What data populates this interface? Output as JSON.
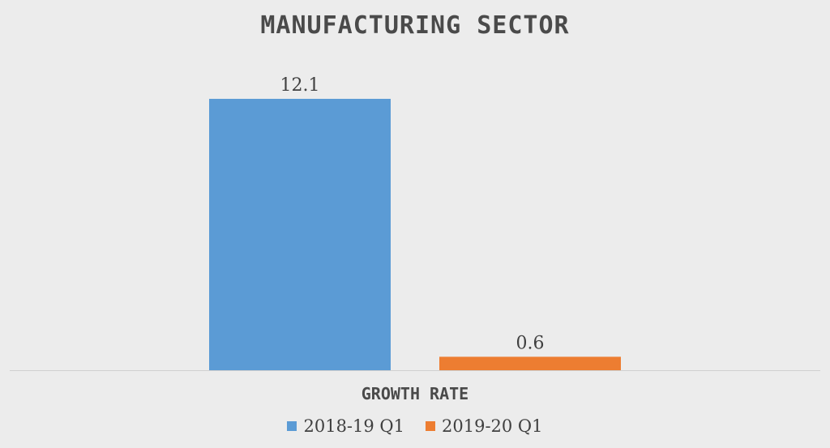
{
  "chart_data": {
    "type": "bar",
    "title": "Manufacturing Sector",
    "categories": [
      "Growth Rate"
    ],
    "series": [
      {
        "name": "2018-19 Q1",
        "values": [
          12.1
        ],
        "color": "#5b9bd5"
      },
      {
        "name": "2019-20 Q1",
        "values": [
          0.6
        ],
        "color": "#ed7d31"
      }
    ],
    "ylim": [
      0,
      12.1
    ],
    "grid": false,
    "data_labels": true,
    "legend_position": "bottom"
  }
}
